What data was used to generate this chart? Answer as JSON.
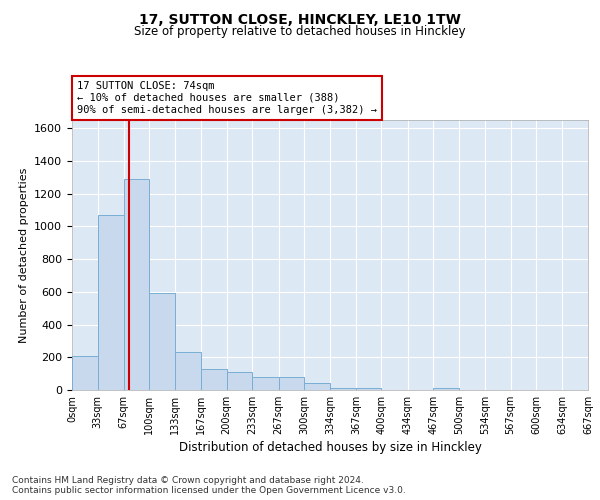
{
  "title1": "17, SUTTON CLOSE, HINCKLEY, LE10 1TW",
  "title2": "Size of property relative to detached houses in Hinckley",
  "xlabel": "Distribution of detached houses by size in Hinckley",
  "ylabel": "Number of detached properties",
  "bar_color": "#c8d9ee",
  "bar_edge_color": "#7aaed4",
  "background_color": "#dde8f5",
  "grid_color": "#ffffff",
  "annotation_text_line1": "17 SUTTON CLOSE: 74sqm",
  "annotation_text_line2": "← 10% of detached houses are smaller (388)",
  "annotation_text_line3": "90% of semi-detached houses are larger (3,382) →",
  "property_line_x": 74,
  "bin_edges": [
    0,
    33,
    67,
    100,
    133,
    167,
    200,
    233,
    267,
    300,
    334,
    367,
    400,
    434,
    467,
    500,
    534,
    567,
    600,
    634,
    667
  ],
  "bar_heights": [
    210,
    1070,
    1290,
    590,
    230,
    130,
    110,
    80,
    80,
    40,
    10,
    10,
    0,
    0,
    10,
    0,
    0,
    0,
    0,
    0
  ],
  "ylim": [
    0,
    1650
  ],
  "yticks": [
    0,
    200,
    400,
    600,
    800,
    1000,
    1200,
    1400,
    1600
  ],
  "footnote": "Contains HM Land Registry data © Crown copyright and database right 2024.\nContains public sector information licensed under the Open Government Licence v3.0."
}
